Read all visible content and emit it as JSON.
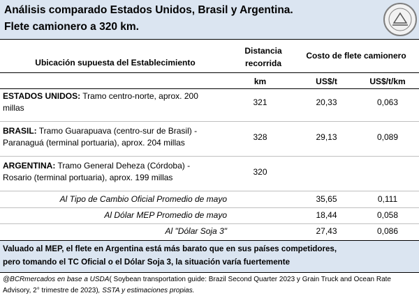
{
  "header": {
    "title_lines": [
      "Análisis comparado Estados Unidos, Brasil y Argentina.",
      "Flete camionero a 320 km."
    ]
  },
  "table": {
    "columns": {
      "location": "Ubicación supuesta del Establecimiento",
      "distance": "Distancia recorrida",
      "cost": "Costo de flete camionero"
    },
    "units": [
      "km",
      "US$/t",
      "US$/t/km"
    ],
    "rows": [
      {
        "country": "ESTADOS UNIDOS:",
        "lines": [
          " Tramo centro-norte, aprox. 200",
          "millas"
        ],
        "km": "321",
        "usd_t": "20,33",
        "usd_t_km": "0,063"
      },
      {
        "country": "BRASIL:",
        "lines": [
          " Tramo Guarapuava (centro-sur de Brasil) -",
          "Paranaguá (terminal portuaria), aprox. 204 millas"
        ],
        "km": "328",
        "usd_t": "29,13",
        "usd_t_km": "0,089"
      },
      {
        "country": "ARGENTINA:",
        "lines": [
          " Tramo General Deheza (Córdoba) -",
          "Rosario (terminal portuaria), aprox. 199 millas"
        ],
        "km": "320",
        "usd_t": null,
        "usd_t_km": null
      }
    ],
    "sub_rows": [
      {
        "label": "Al Tipo de Cambio Oficial Promedio de mayo",
        "usd_t": "35,65",
        "usd_t_km": "0,111"
      },
      {
        "label": "Al Dólar MEP Promedio de mayo",
        "usd_t": "18,44",
        "usd_t_km": "0,058"
      },
      {
        "label": "Al \"Dólar Soja 3\"",
        "usd_t": "27,43",
        "usd_t_km": "0,086"
      }
    ]
  },
  "conclusion_lines": [
    "Valuado al MEP, el flete en Argentina está más barato que en sus países competidores,",
    "pero tomando el TC Oficial o el Dólar Soja 3, la situación varía fuertemente"
  ],
  "source": [
    "@BCRmercados en base a USDA",
    "( Soybean transportation guide: Brazil Second Quarter 2023 y Grain Truck and Ocean Rate Advisory, 2° trimestre de 2023)",
    ", SSTA y estimaciones propias."
  ]
}
